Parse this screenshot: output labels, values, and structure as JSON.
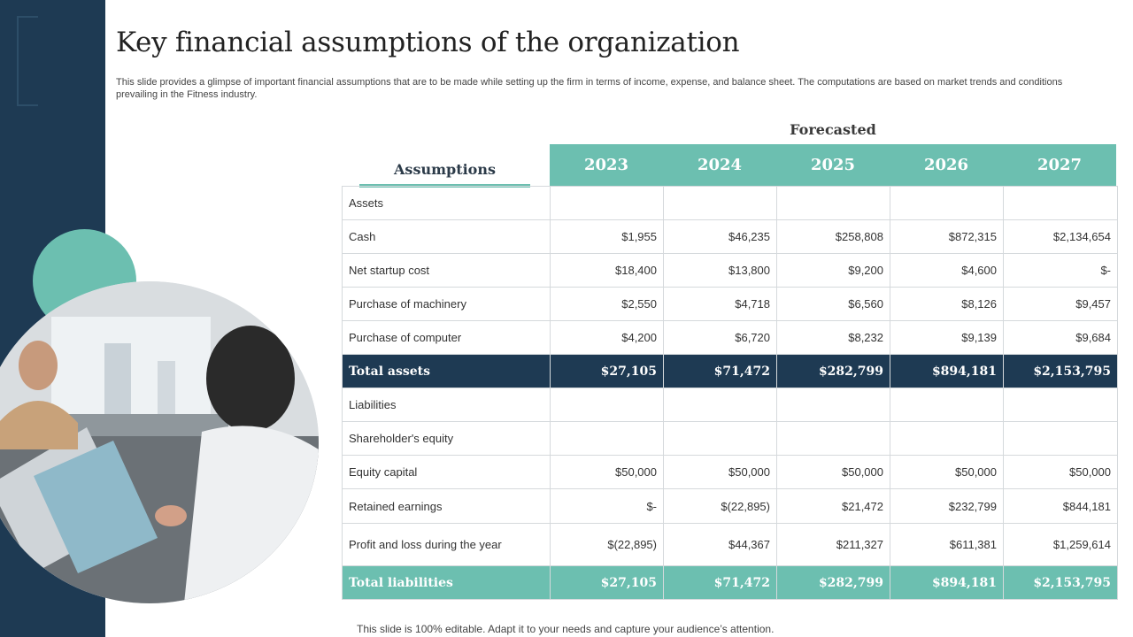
{
  "slide": {
    "title": "Key financial assumptions of the organization",
    "subtitle": "This slide provides a glimpse of important financial assumptions that are to be made while setting up the firm in terms of income, expense, and balance sheet. The computations are based on market trends and conditions prevailing in the Fitness industry.",
    "footer": "This slide is 100% editable. Adapt it to your needs and capture your audience’s attention."
  },
  "colors": {
    "navy": "#1e3a53",
    "teal": "#6cbfb0"
  },
  "table": {
    "assumptions_header": "Assumptions",
    "forecast_label": "Forecasted",
    "years": [
      "2023",
      "2024",
      "2025",
      "2026",
      "2027"
    ],
    "rows": [
      {
        "label": "Assets",
        "values": [
          "",
          "",
          "",
          "",
          ""
        ],
        "style": "plain"
      },
      {
        "label": "Cash",
        "values": [
          "$1,955",
          "$46,235",
          "$258,808",
          "$872,315",
          "$2,134,654"
        ],
        "style": "plain"
      },
      {
        "label": "Net startup cost",
        "values": [
          "$18,400",
          "$13,800",
          "$9,200",
          "$4,600",
          "$-"
        ],
        "style": "plain"
      },
      {
        "label": "Purchase of machinery",
        "values": [
          "$2,550",
          "$4,718",
          "$6,560",
          "$8,126",
          "$9,457"
        ],
        "style": "plain"
      },
      {
        "label": "Purchase of computer",
        "values": [
          "$4,200",
          "$6,720",
          "$8,232",
          "$9,139",
          "$9,684"
        ],
        "style": "plain"
      },
      {
        "label": "Total assets",
        "values": [
          "$27,105",
          "$71,472",
          "$282,799",
          "$894,181",
          "$2,153,795"
        ],
        "style": "total-dark"
      },
      {
        "label": "Liabilities",
        "values": [
          "",
          "",
          "",
          "",
          ""
        ],
        "style": "plain"
      },
      {
        "label": "Shareholder's  equity",
        "values": [
          "",
          "",
          "",
          "",
          ""
        ],
        "style": "plain"
      },
      {
        "label": "Equity capital",
        "values": [
          "$50,000",
          "$50,000",
          "$50,000",
          "$50,000",
          "$50,000"
        ],
        "style": "plain"
      },
      {
        "label": "Retained  earnings",
        "values": [
          "$-",
          "$(22,895)",
          "$21,472",
          "$232,799",
          "$844,181"
        ],
        "style": "plain"
      },
      {
        "label": "Profit  and loss during the year",
        "values": [
          "$(22,895)",
          "$44,367",
          "$211,327",
          "$611,381",
          "$1,259,614"
        ],
        "style": "plain"
      },
      {
        "label": "Total liabilities",
        "values": [
          "$27,105",
          "$71,472",
          "$282,799",
          "$894,181",
          "$2,153,795"
        ],
        "style": "total-teal"
      }
    ]
  }
}
